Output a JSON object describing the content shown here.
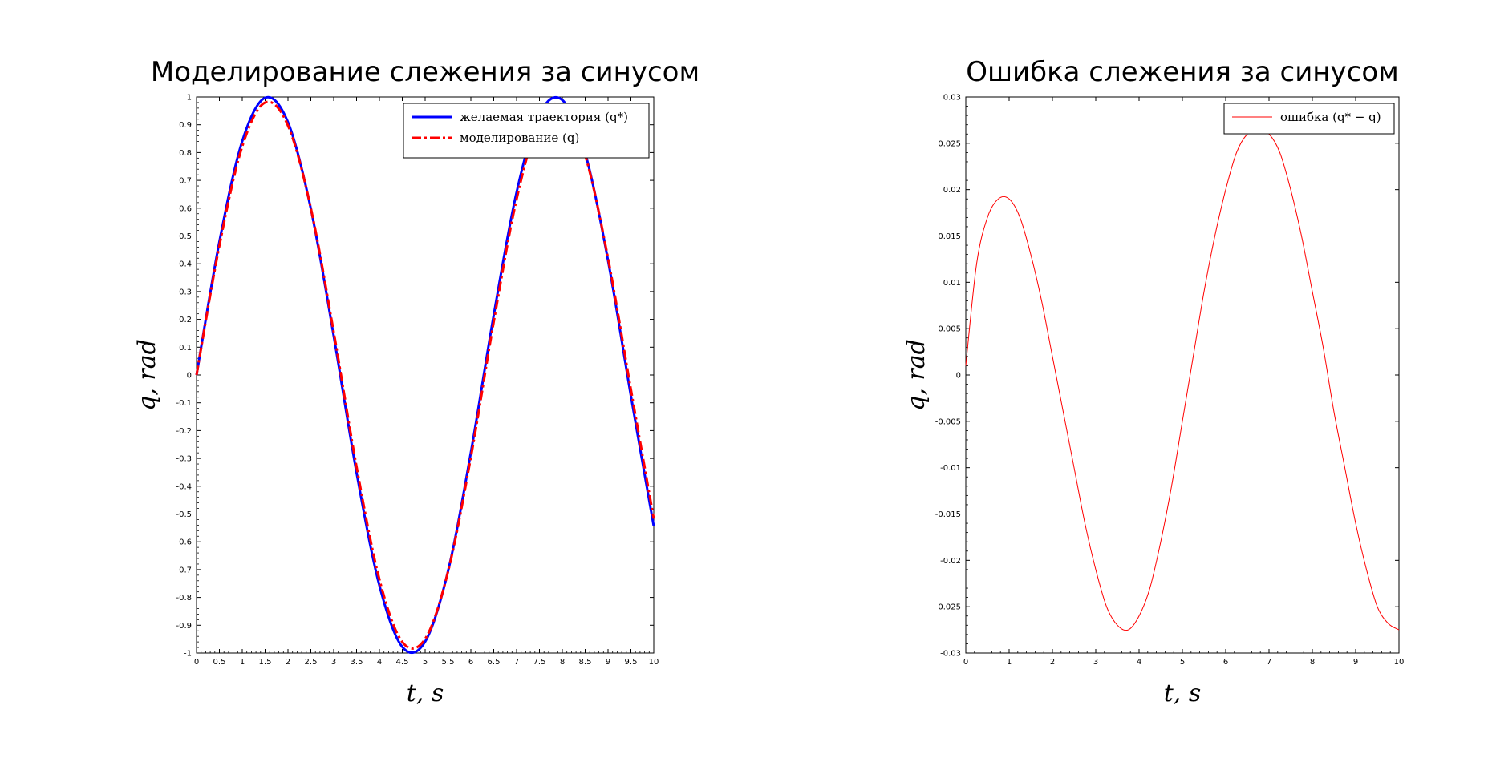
{
  "chart_data": [
    {
      "type": "line",
      "title": "Моделирование слежения за синусом",
      "xlabel": "t, s",
      "ylabel": "q, rad",
      "xlim": [
        0,
        10
      ],
      "ylim": [
        -1,
        1
      ],
      "x_ticks": [
        "0",
        "0.5",
        "1",
        "1.5",
        "2",
        "2.5",
        "3",
        "3.5",
        "4",
        "4.5",
        "5",
        "5.5",
        "6",
        "6.5",
        "7",
        "7.5",
        "8",
        "8.5",
        "9",
        "9.5",
        "10"
      ],
      "y_ticks": [
        "1",
        "0.9",
        "0.8",
        "0.7",
        "0.6",
        "0.5",
        "0.4",
        "0.3",
        "0.2",
        "0.1",
        "0",
        "-0.1",
        "-0.2",
        "-0.3",
        "-0.4",
        "-0.5",
        "-0.6",
        "-0.7",
        "-0.8",
        "-0.9",
        "-1"
      ],
      "legend_position": "top-right",
      "x": [
        0,
        0.5,
        1,
        1.5,
        2,
        2.5,
        3,
        3.5,
        4,
        4.5,
        5,
        5.5,
        6,
        6.5,
        7,
        7.5,
        8,
        8.5,
        9,
        9.5,
        10
      ],
      "series": [
        {
          "name": "желаемая траектория (q*)",
          "color": "#0000ff",
          "style": "solid",
          "values": [
            0,
            0.479,
            0.841,
            0.997,
            0.909,
            0.598,
            0.141,
            -0.351,
            -0.757,
            -0.978,
            -0.959,
            -0.706,
            -0.279,
            0.215,
            0.657,
            0.938,
            0.989,
            0.798,
            0.412,
            -0.075,
            -0.544
          ]
        },
        {
          "name": "моделирование (q)",
          "color": "#ff0000",
          "style": "dashdot",
          "values": [
            0,
            0.465,
            0.822,
            0.98,
            0.897,
            0.6,
            0.155,
            -0.33,
            -0.735,
            -0.96,
            -0.949,
            -0.708,
            -0.296,
            0.191,
            0.632,
            0.914,
            0.968,
            0.79,
            0.42,
            -0.052,
            -0.517
          ]
        }
      ]
    },
    {
      "type": "line",
      "title": "Ошибка слежения за синусом",
      "xlabel": "t, s",
      "ylabel": "q, rad",
      "xlim": [
        0,
        10
      ],
      "ylim": [
        -0.03,
        0.03
      ],
      "x_ticks": [
        "0",
        "1",
        "2",
        "3",
        "4",
        "5",
        "6",
        "7",
        "8",
        "9",
        "10"
      ],
      "y_ticks": [
        "0.03",
        "0.025",
        "0.02",
        "0.015",
        "0.01",
        "0.005",
        "0",
        "-0.005",
        "-0.01",
        "-0.015",
        "-0.02",
        "-0.025",
        "-0.03"
      ],
      "legend_position": "top-right",
      "x": [
        0,
        0.25,
        0.5,
        0.75,
        1,
        1.25,
        1.5,
        1.75,
        2,
        2.25,
        2.5,
        2.75,
        3,
        3.25,
        3.5,
        3.75,
        4,
        4.25,
        4.5,
        4.75,
        5,
        5.25,
        5.5,
        5.75,
        6,
        6.25,
        6.5,
        6.75,
        7,
        7.25,
        7.5,
        7.75,
        8,
        8.25,
        8.5,
        8.75,
        9,
        9.25,
        9.5,
        9.75,
        10
      ],
      "series": [
        {
          "name": "ошибка (q* − q)",
          "color": "#ff0000",
          "style": "solid",
          "values": [
            0.001,
            0.012,
            0.017,
            0.019,
            0.019,
            0.017,
            0.013,
            0.008,
            0.002,
            -0.004,
            -0.01,
            -0.016,
            -0.021,
            -0.025,
            -0.027,
            -0.0275,
            -0.026,
            -0.023,
            -0.018,
            -0.012,
            -0.005,
            0.002,
            0.009,
            0.015,
            0.02,
            0.024,
            0.026,
            0.0265,
            0.026,
            0.024,
            0.02,
            0.015,
            0.009,
            0.003,
            -0.004,
            -0.01,
            -0.016,
            -0.021,
            -0.025,
            -0.0268,
            -0.0275
          ]
        }
      ]
    }
  ]
}
